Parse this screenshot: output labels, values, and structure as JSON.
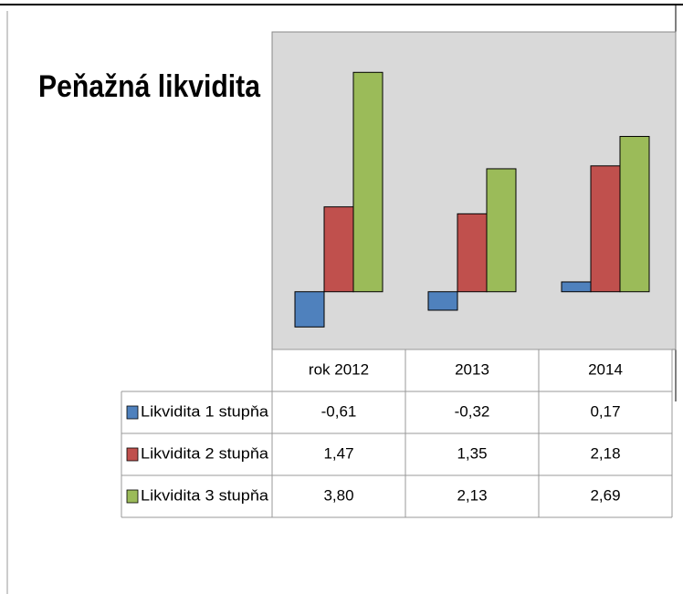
{
  "chart_data": {
    "type": "bar",
    "title": "Peňažná likvidita",
    "categories": [
      "rok 2012",
      "2013",
      "2014"
    ],
    "series": [
      {
        "name": "Likvidita 1 stupňa",
        "color": "#4f81bd",
        "values": [
          -0.61,
          -0.32,
          0.17
        ],
        "value_labels": [
          "-0,61",
          "-0,32",
          "0,17"
        ]
      },
      {
        "name": "Likvidita 2 stupňa",
        "color": "#c0504d",
        "values": [
          1.47,
          1.35,
          2.18
        ],
        "value_labels": [
          "1,47",
          "1,35",
          "2,18"
        ]
      },
      {
        "name": "Likvidita 3 stupňa",
        "color": "#9bbb59",
        "values": [
          3.8,
          2.13,
          2.69
        ],
        "value_labels": [
          "3,80",
          "2,13",
          "2,69"
        ]
      }
    ],
    "ylim": [
      -1,
      4.5
    ]
  }
}
